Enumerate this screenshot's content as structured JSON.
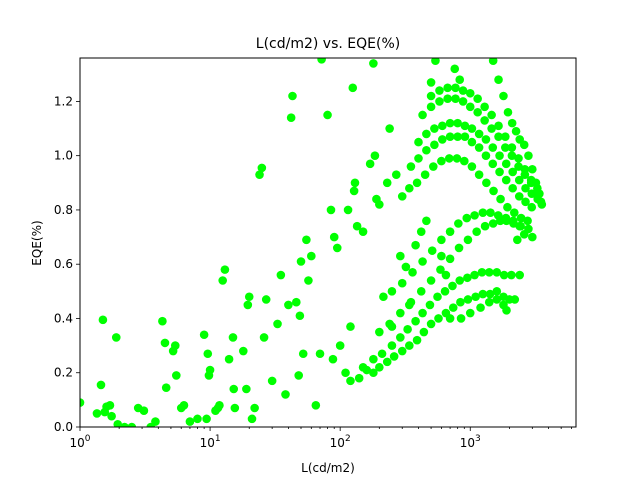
{
  "chart_data": {
    "type": "scatter",
    "title": "L(cd/m2) vs. EQE(%)",
    "xlabel": "L(cd/m2)",
    "ylabel": "EQE(%)",
    "xscale": "log",
    "xlim": [
      1,
      6500
    ],
    "ylim": [
      0,
      1.36
    ],
    "xticks": [
      {
        "value": 1,
        "base": "10",
        "exp": "0"
      },
      {
        "value": 10,
        "base": "10",
        "exp": "1"
      },
      {
        "value": 100,
        "base": "10",
        "exp": "2"
      },
      {
        "value": 1000,
        "base": "10",
        "exp": "3"
      }
    ],
    "yticks": [
      "0.0",
      "0.2",
      "0.4",
      "0.6",
      "0.8",
      "1.0",
      "1.2"
    ],
    "grid": false,
    "marker_color": "#00ff00",
    "points": [
      [
        1.0,
        0.09
      ],
      [
        1.35,
        0.05
      ],
      [
        1.45,
        0.155
      ],
      [
        1.5,
        0.395
      ],
      [
        1.55,
        0.055
      ],
      [
        1.6,
        0.075
      ],
      [
        1.7,
        0.08
      ],
      [
        1.75,
        0.04
      ],
      [
        1.9,
        0.33
      ],
      [
        1.95,
        0.01
      ],
      [
        2.2,
        0.0
      ],
      [
        2.5,
        0.0
      ],
      [
        2.8,
        0.07
      ],
      [
        3.1,
        0.06
      ],
      [
        3.5,
        0.0
      ],
      [
        3.8,
        0.02
      ],
      [
        4.3,
        0.39
      ],
      [
        4.5,
        0.31
      ],
      [
        4.6,
        0.145
      ],
      [
        5.2,
        0.28
      ],
      [
        5.4,
        0.3
      ],
      [
        5.5,
        0.19
      ],
      [
        6.0,
        0.07
      ],
      [
        6.3,
        0.08
      ],
      [
        7.0,
        0.02
      ],
      [
        8.0,
        0.03
      ],
      [
        9.0,
        0.34
      ],
      [
        9.4,
        0.03
      ],
      [
        9.6,
        0.27
      ],
      [
        9.8,
        0.19
      ],
      [
        10.0,
        0.21
      ],
      [
        11.0,
        0.06
      ],
      [
        11.5,
        0.07
      ],
      [
        11.8,
        0.08
      ],
      [
        12.5,
        0.54
      ],
      [
        13.0,
        0.58
      ],
      [
        14.0,
        0.25
      ],
      [
        15.0,
        0.33
      ],
      [
        15.2,
        0.14
      ],
      [
        15.5,
        0.07
      ],
      [
        18.0,
        0.28
      ],
      [
        19.0,
        0.14
      ],
      [
        19.5,
        0.45
      ],
      [
        20.0,
        0.48
      ],
      [
        21.0,
        0.03
      ],
      [
        22.0,
        0.07
      ],
      [
        24.0,
        0.93
      ],
      [
        25.0,
        0.955
      ],
      [
        26.0,
        0.33
      ],
      [
        27.0,
        0.47
      ],
      [
        30.0,
        0.17
      ],
      [
        33.0,
        0.38
      ],
      [
        35.0,
        0.56
      ],
      [
        38.0,
        0.12
      ],
      [
        40.0,
        0.45
      ],
      [
        42.0,
        1.14
      ],
      [
        43.0,
        1.22
      ],
      [
        46.0,
        0.46
      ],
      [
        48.0,
        0.19
      ],
      [
        49.0,
        0.41
      ],
      [
        50.0,
        0.61
      ],
      [
        52.0,
        0.27
      ],
      [
        55.0,
        0.69
      ],
      [
        57.0,
        0.54
      ],
      [
        60.0,
        0.63
      ],
      [
        65.0,
        0.08
      ],
      [
        70.0,
        0.27
      ],
      [
        72.0,
        1.355
      ],
      [
        80.0,
        1.15
      ],
      [
        85.0,
        0.8
      ],
      [
        88.0,
        0.25
      ],
      [
        90.0,
        0.7
      ],
      [
        95.0,
        0.66
      ],
      [
        100.0,
        0.3
      ],
      [
        110.0,
        0.2
      ],
      [
        115.0,
        0.8
      ],
      [
        120.0,
        0.37
      ],
      [
        125.0,
        1.25
      ],
      [
        128.0,
        0.87
      ],
      [
        130.0,
        0.9
      ],
      [
        135.0,
        0.74
      ],
      [
        150.0,
        0.72
      ],
      [
        170.0,
        0.97
      ],
      [
        180.0,
        1.34
      ],
      [
        185.0,
        1.0
      ],
      [
        190.0,
        0.84
      ],
      [
        200.0,
        0.82
      ],
      [
        215.0,
        0.48
      ],
      [
        230.0,
        0.9
      ],
      [
        240.0,
        1.1
      ],
      [
        250.0,
        0.37
      ],
      [
        270.0,
        0.93
      ],
      [
        290.0,
        0.63
      ],
      [
        320.0,
        0.59
      ],
      [
        340.0,
        0.45
      ],
      [
        380.0,
        0.67
      ],
      [
        420.0,
        0.72
      ],
      [
        460.0,
        0.76
      ],
      [
        500.0,
        1.27
      ],
      [
        540.0,
        1.35
      ],
      [
        600.0,
        0.63
      ],
      [
        650.0,
        0.56
      ],
      [
        700.0,
        1.38
      ],
      [
        760.0,
        1.32
      ],
      [
        830.0,
        1.28
      ],
      [
        120.0,
        0.17
      ],
      [
        140.0,
        0.18
      ],
      [
        160.0,
        0.21
      ],
      [
        180.0,
        0.2
      ],
      [
        200.0,
        0.22
      ],
      [
        230.0,
        0.24
      ],
      [
        260.0,
        0.26
      ],
      [
        300.0,
        0.28
      ],
      [
        340.0,
        0.3
      ],
      [
        390.0,
        0.32
      ],
      [
        440.0,
        0.35
      ],
      [
        500.0,
        0.38
      ],
      [
        570.0,
        0.4
      ],
      [
        650.0,
        0.42
      ],
      [
        740.0,
        0.44
      ],
      [
        840.0,
        0.46
      ],
      [
        960.0,
        0.47
      ],
      [
        1100.0,
        0.48
      ],
      [
        1250.0,
        0.49
      ],
      [
        1420.0,
        0.49
      ],
      [
        1600.0,
        0.5
      ],
      [
        1800.0,
        0.48
      ],
      [
        2000.0,
        0.47
      ],
      [
        150.0,
        0.22
      ],
      [
        180.0,
        0.25
      ],
      [
        210.0,
        0.27
      ],
      [
        250.0,
        0.3
      ],
      [
        290.0,
        0.33
      ],
      [
        330.0,
        0.36
      ],
      [
        380.0,
        0.39
      ],
      [
        430.0,
        0.42
      ],
      [
        490.0,
        0.45
      ],
      [
        560.0,
        0.48
      ],
      [
        640.0,
        0.5
      ],
      [
        730.0,
        0.52
      ],
      [
        830.0,
        0.54
      ],
      [
        950.0,
        0.55
      ],
      [
        1080.0,
        0.56
      ],
      [
        1230.0,
        0.57
      ],
      [
        1400.0,
        0.57
      ],
      [
        1600.0,
        0.57
      ],
      [
        1820.0,
        0.56
      ],
      [
        2070.0,
        0.56
      ],
      [
        200.0,
        0.35
      ],
      [
        240.0,
        0.38
      ],
      [
        290.0,
        0.42
      ],
      [
        350.0,
        0.46
      ],
      [
        420.0,
        0.5
      ],
      [
        500.0,
        0.54
      ],
      [
        590.0,
        0.58
      ],
      [
        700.0,
        0.62
      ],
      [
        820.0,
        0.66
      ],
      [
        960.0,
        0.69
      ],
      [
        1120.0,
        0.72
      ],
      [
        1300.0,
        0.74
      ],
      [
        1500.0,
        0.75
      ],
      [
        1700.0,
        0.76
      ],
      [
        1900.0,
        0.76
      ],
      [
        2150.0,
        0.75
      ],
      [
        2400.0,
        0.74
      ],
      [
        250.0,
        0.5
      ],
      [
        300.0,
        0.53
      ],
      [
        360.0,
        0.57
      ],
      [
        430.0,
        0.61
      ],
      [
        510.0,
        0.65
      ],
      [
        600.0,
        0.69
      ],
      [
        700.0,
        0.72
      ],
      [
        810.0,
        0.75
      ],
      [
        940.0,
        0.77
      ],
      [
        1080.0,
        0.78
      ],
      [
        1250.0,
        0.79
      ],
      [
        1430.0,
        0.79
      ],
      [
        1640.0,
        0.78
      ],
      [
        1880.0,
        0.77
      ],
      [
        2140.0,
        0.76
      ],
      [
        2440.0,
        0.74
      ],
      [
        300.0,
        0.85
      ],
      [
        340.0,
        0.88
      ],
      [
        390.0,
        0.9
      ],
      [
        450.0,
        0.93
      ],
      [
        520.0,
        0.96
      ],
      [
        600.0,
        0.98
      ],
      [
        690.0,
        0.99
      ],
      [
        790.0,
        0.99
      ],
      [
        900.0,
        0.98
      ],
      [
        1030.0,
        0.96
      ],
      [
        1170.0,
        0.93
      ],
      [
        1330.0,
        0.9
      ],
      [
        1510.0,
        0.87
      ],
      [
        1710.0,
        0.84
      ],
      [
        1930.0,
        0.81
      ],
      [
        2180.0,
        0.79
      ],
      [
        2460.0,
        0.77
      ],
      [
        2760.0,
        0.76
      ],
      [
        350.0,
        0.96
      ],
      [
        400.0,
        0.99
      ],
      [
        460.0,
        1.02
      ],
      [
        530.0,
        1.04
      ],
      [
        610.0,
        1.06
      ],
      [
        700.0,
        1.07
      ],
      [
        800.0,
        1.07
      ],
      [
        910.0,
        1.07
      ],
      [
        1030.0,
        1.05
      ],
      [
        1170.0,
        1.03
      ],
      [
        1320.0,
        1.0
      ],
      [
        1490.0,
        0.97
      ],
      [
        1680.0,
        0.94
      ],
      [
        1890.0,
        0.91
      ],
      [
        2120.0,
        0.88
      ],
      [
        2380.0,
        0.85
      ],
      [
        2660.0,
        0.83
      ],
      [
        2970.0,
        0.81
      ],
      [
        400.0,
        1.05
      ],
      [
        460.0,
        1.08
      ],
      [
        530.0,
        1.1
      ],
      [
        610.0,
        1.11
      ],
      [
        700.0,
        1.12
      ],
      [
        800.0,
        1.12
      ],
      [
        910.0,
        1.11
      ],
      [
        1030.0,
        1.1
      ],
      [
        1170.0,
        1.08
      ],
      [
        1320.0,
        1.06
      ],
      [
        1490.0,
        1.03
      ],
      [
        1680.0,
        1.0
      ],
      [
        1890.0,
        0.97
      ],
      [
        2120.0,
        0.94
      ],
      [
        2380.0,
        0.91
      ],
      [
        2660.0,
        0.88
      ],
      [
        2970.0,
        0.86
      ],
      [
        3300.0,
        0.84
      ],
      [
        430.0,
        1.15
      ],
      [
        500.0,
        1.18
      ],
      [
        580.0,
        1.2
      ],
      [
        670.0,
        1.21
      ],
      [
        770.0,
        1.21
      ],
      [
        880.0,
        1.2
      ],
      [
        1000.0,
        1.18
      ],
      [
        1140.0,
        1.16
      ],
      [
        1290.0,
        1.13
      ],
      [
        1460.0,
        1.1
      ],
      [
        1650.0,
        1.07
      ],
      [
        1860.0,
        1.03
      ],
      [
        2090.0,
        1.0
      ],
      [
        2350.0,
        0.96
      ],
      [
        2630.0,
        0.93
      ],
      [
        2940.0,
        0.9
      ],
      [
        3280.0,
        0.86
      ],
      [
        3500.0,
        0.83
      ],
      [
        500.0,
        1.22
      ],
      [
        580.0,
        1.24
      ],
      [
        670.0,
        1.25
      ],
      [
        770.0,
        1.25
      ],
      [
        880.0,
        1.24
      ],
      [
        1000.0,
        1.23
      ],
      [
        1140.0,
        1.21
      ],
      [
        1290.0,
        1.18
      ],
      [
        1460.0,
        1.15
      ],
      [
        1650.0,
        1.11
      ],
      [
        1860.0,
        1.07
      ],
      [
        2090.0,
        1.03
      ],
      [
        2350.0,
        0.99
      ],
      [
        2630.0,
        0.95
      ],
      [
        2940.0,
        0.91
      ],
      [
        3280.0,
        0.88
      ],
      [
        1500.0,
        1.35
      ],
      [
        1650.0,
        1.28
      ],
      [
        1800.0,
        1.22
      ],
      [
        1950.0,
        1.16
      ],
      [
        2100.0,
        1.12
      ],
      [
        2250.0,
        1.09
      ],
      [
        2400.0,
        1.06
      ],
      [
        2600.0,
        1.04
      ],
      [
        2800.0,
        1.0
      ],
      [
        3000.0,
        0.95
      ],
      [
        3200.0,
        0.9
      ],
      [
        3400.0,
        0.86
      ],
      [
        3550.0,
        0.82
      ],
      [
        1200.0,
        0.44
      ],
      [
        1400.0,
        0.46
      ],
      [
        1600.0,
        0.47
      ],
      [
        1800.0,
        0.45
      ],
      [
        1900.0,
        0.43
      ],
      [
        1000.0,
        0.42
      ],
      [
        850.0,
        0.4
      ],
      [
        700.0,
        0.4
      ],
      [
        2200.0,
        0.47
      ],
      [
        2400.0,
        0.56
      ],
      [
        2300.0,
        0.69
      ],
      [
        2600.0,
        0.71
      ],
      [
        2800.0,
        0.73
      ],
      [
        3000.0,
        0.7
      ]
    ]
  }
}
